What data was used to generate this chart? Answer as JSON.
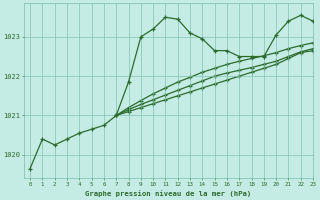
{
  "title": "Graphe pression niveau de la mer (hPa)",
  "background_color": "#c5ece4",
  "plot_bg_color": "#c5ece4",
  "grid_color": "#7bbfaa",
  "line_color": "#2d6a2d",
  "xlim": [
    -0.5,
    23
  ],
  "ylim": [
    1019.4,
    1023.85
  ],
  "yticks": [
    1020,
    1021,
    1022,
    1023
  ],
  "xticks": [
    0,
    1,
    2,
    3,
    4,
    5,
    6,
    7,
    8,
    9,
    10,
    11,
    12,
    13,
    14,
    15,
    16,
    17,
    18,
    19,
    20,
    21,
    22,
    23
  ],
  "line1_x": [
    0,
    1,
    2,
    3,
    4,
    5,
    6,
    7,
    8,
    9,
    10,
    11,
    12,
    13,
    14,
    15,
    16,
    17,
    18,
    19,
    20,
    21,
    22,
    23
  ],
  "line1_y": [
    1019.65,
    1020.4,
    1020.25,
    1020.4,
    1020.55,
    1020.65,
    1020.75,
    1021.0,
    1021.85,
    1023.0,
    1023.2,
    1023.5,
    1023.45,
    1023.1,
    1022.95,
    1022.65,
    1022.65,
    1022.5,
    1022.5,
    1022.5,
    1023.05,
    1023.4,
    1023.55,
    1023.4
  ],
  "line2_x": [
    7,
    8,
    9,
    10,
    11,
    12,
    13,
    14,
    15,
    16,
    17,
    18,
    19,
    20,
    21,
    22,
    23
  ],
  "line2_y": [
    1021.0,
    1021.1,
    1021.2,
    1021.3,
    1021.4,
    1021.5,
    1021.6,
    1021.7,
    1021.8,
    1021.9,
    1022.0,
    1022.1,
    1022.2,
    1022.3,
    1022.45,
    1022.6,
    1022.65
  ],
  "line3_x": [
    7,
    8,
    9,
    10,
    11,
    12,
    13,
    14,
    15,
    16,
    17,
    18,
    19,
    20,
    21,
    22,
    23
  ],
  "line3_y": [
    1021.0,
    1021.15,
    1021.28,
    1021.4,
    1021.52,
    1021.64,
    1021.76,
    1021.88,
    1022.0,
    1022.08,
    1022.15,
    1022.22,
    1022.3,
    1022.38,
    1022.5,
    1022.62,
    1022.7
  ],
  "line4_x": [
    7,
    8,
    9,
    10,
    11,
    12,
    13,
    14,
    15,
    16,
    17,
    18,
    19,
    20,
    21,
    22,
    23
  ],
  "line4_y": [
    1021.0,
    1021.2,
    1021.38,
    1021.55,
    1021.7,
    1021.85,
    1021.97,
    1022.1,
    1022.2,
    1022.3,
    1022.38,
    1022.45,
    1022.52,
    1022.6,
    1022.7,
    1022.78,
    1022.85
  ]
}
